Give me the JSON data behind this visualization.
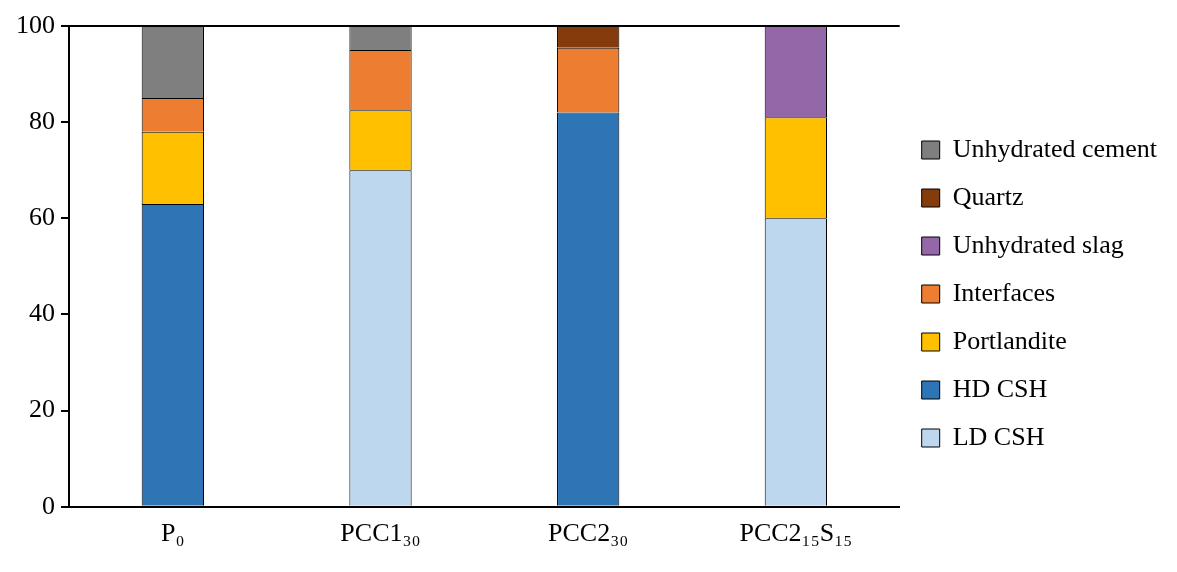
{
  "chart_data": {
    "type": "bar",
    "stacked": true,
    "categories": [
      "P₀",
      "PCC1₃₀",
      "PCC2₃₀",
      "PCC2₁₅S₁₅"
    ],
    "series": [
      {
        "name": "LD CSH",
        "color": "#bdd7ee",
        "values": [
          null,
          70,
          null,
          60
        ]
      },
      {
        "name": "HD CSH",
        "color": "#2e75b6",
        "values": [
          63,
          null,
          82,
          null
        ]
      },
      {
        "name": "Portlandite",
        "color": "#ffc000",
        "values": [
          15,
          12.5,
          null,
          21
        ]
      },
      {
        "name": "Interfaces",
        "color": "#ed7d31",
        "values": [
          7,
          12.5,
          13.5,
          null
        ]
      },
      {
        "name": "Unhydrated slag",
        "color": "#9467a8",
        "values": [
          null,
          null,
          null,
          19
        ]
      },
      {
        "name": "Quartz",
        "color": "#843c0c",
        "values": [
          null,
          null,
          4.5,
          null
        ]
      },
      {
        "name": "Unhydrated cement",
        "color": "#7f7f7f",
        "values": [
          15,
          5,
          null,
          null
        ]
      }
    ],
    "ylim": [
      0,
      100
    ],
    "yticks": [
      0,
      20,
      40,
      60,
      80,
      100
    ],
    "grid": false,
    "legend": "right"
  }
}
